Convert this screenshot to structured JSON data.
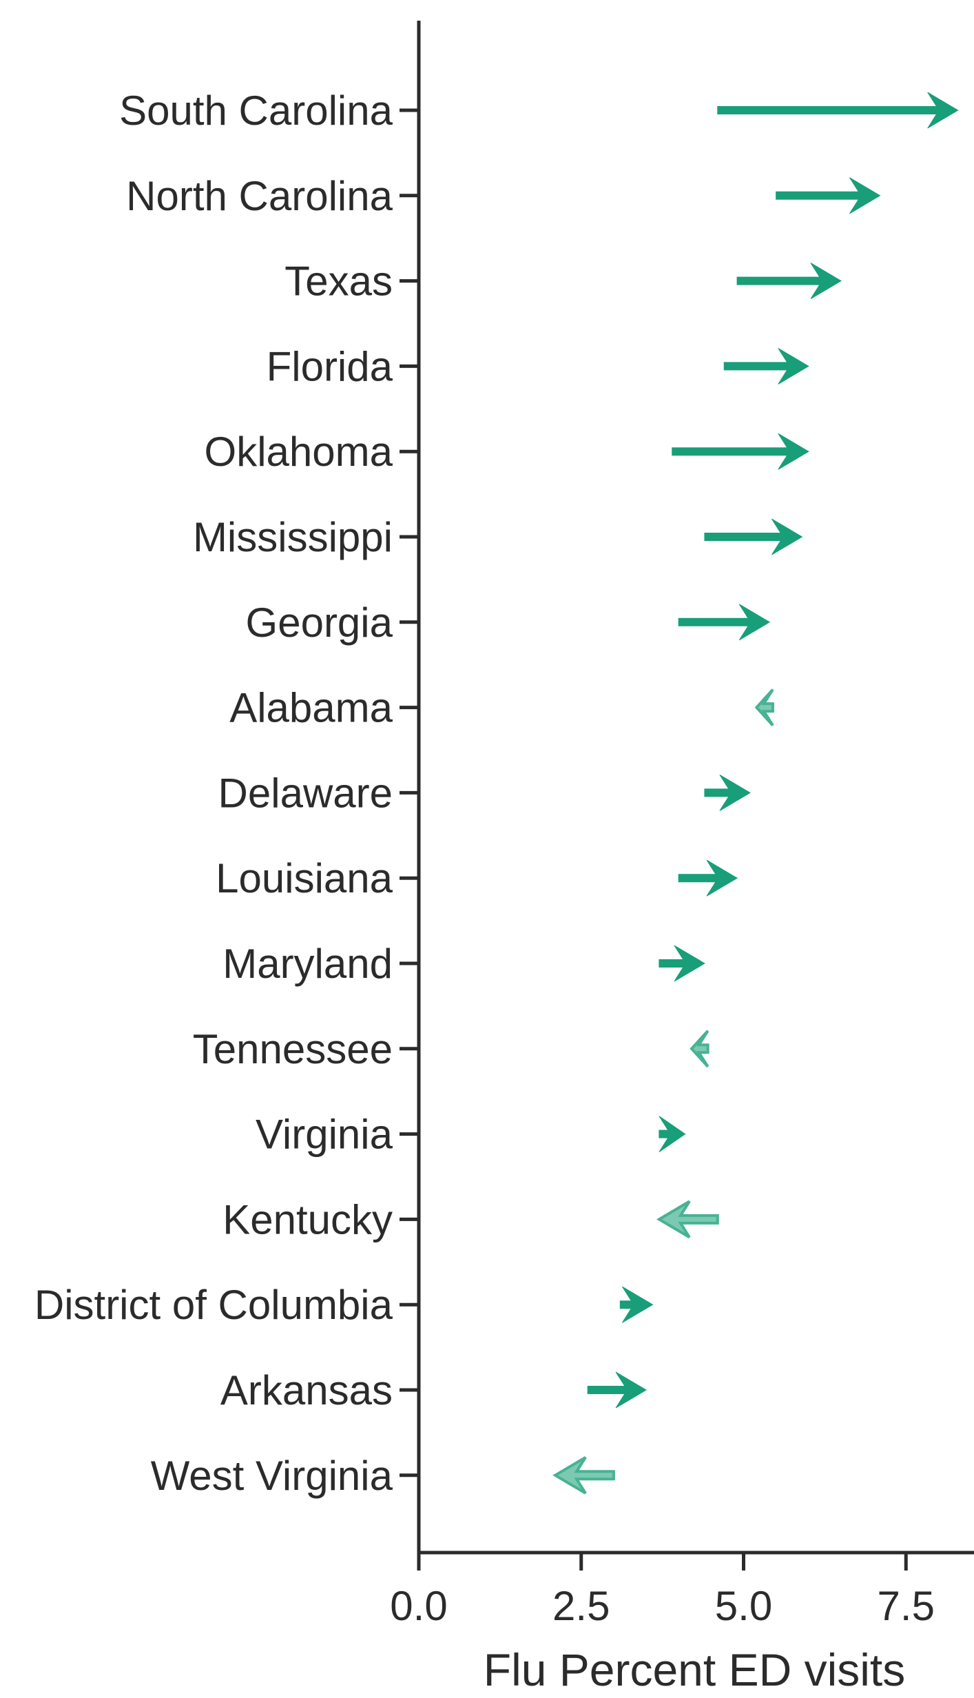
{
  "chart_data": {
    "type": "arrow",
    "title": "",
    "xlabel": "Flu Percent ED visits",
    "ylabel": "",
    "grid": false,
    "legend_position": "none",
    "xlim": [
      0,
      8.55
    ],
    "x_ticks": [
      {
        "label": "0.0",
        "value": 0.0
      },
      {
        "label": "2.5",
        "value": 2.5
      },
      {
        "label": "5.0",
        "value": 5.0
      },
      {
        "label": "7.5",
        "value": 7.5
      }
    ],
    "categories": [
      "South Carolina",
      "North Carolina",
      "Texas",
      "Florida",
      "Oklahoma",
      "Mississippi",
      "Georgia",
      "Alabama",
      "Delaware",
      "Louisiana",
      "Maryland",
      "Tennessee",
      "Virginia",
      "Kentucky",
      "District of Columbia",
      "Arkansas",
      "West Virginia"
    ],
    "points": [
      {
        "state": "South Carolina",
        "start": 4.6,
        "end": 8.3,
        "direction": "increase"
      },
      {
        "state": "North Carolina",
        "start": 5.5,
        "end": 7.1,
        "direction": "increase"
      },
      {
        "state": "Texas",
        "start": 4.9,
        "end": 6.5,
        "direction": "increase"
      },
      {
        "state": "Florida",
        "start": 4.7,
        "end": 6.0,
        "direction": "increase"
      },
      {
        "state": "Oklahoma",
        "start": 3.9,
        "end": 6.0,
        "direction": "increase"
      },
      {
        "state": "Mississippi",
        "start": 4.4,
        "end": 5.9,
        "direction": "increase"
      },
      {
        "state": "Georgia",
        "start": 4.0,
        "end": 5.4,
        "direction": "increase"
      },
      {
        "state": "Alabama",
        "start": 5.45,
        "end": 5.2,
        "direction": "decrease"
      },
      {
        "state": "Delaware",
        "start": 4.4,
        "end": 5.1,
        "direction": "increase"
      },
      {
        "state": "Louisiana",
        "start": 4.0,
        "end": 4.9,
        "direction": "increase"
      },
      {
        "state": "Maryland",
        "start": 3.7,
        "end": 4.4,
        "direction": "increase"
      },
      {
        "state": "Tennessee",
        "start": 4.45,
        "end": 4.2,
        "direction": "decrease"
      },
      {
        "state": "Virginia",
        "start": 3.7,
        "end": 4.1,
        "direction": "increase"
      },
      {
        "state": "Kentucky",
        "start": 4.6,
        "end": 3.7,
        "direction": "decrease"
      },
      {
        "state": "District of Columbia",
        "start": 3.1,
        "end": 3.6,
        "direction": "increase"
      },
      {
        "state": "Arkansas",
        "start": 2.6,
        "end": 3.5,
        "direction": "increase"
      },
      {
        "state": "West Virginia",
        "start": 3.0,
        "end": 2.1,
        "direction": "decrease"
      }
    ],
    "colors": {
      "increase_fill": "#189e78",
      "decrease_fill": "#7cc9b1",
      "decrease_stroke": "#47b294",
      "axis": "#2b2b2b",
      "text": "#2b2b2b",
      "background": "#ffffff"
    }
  }
}
